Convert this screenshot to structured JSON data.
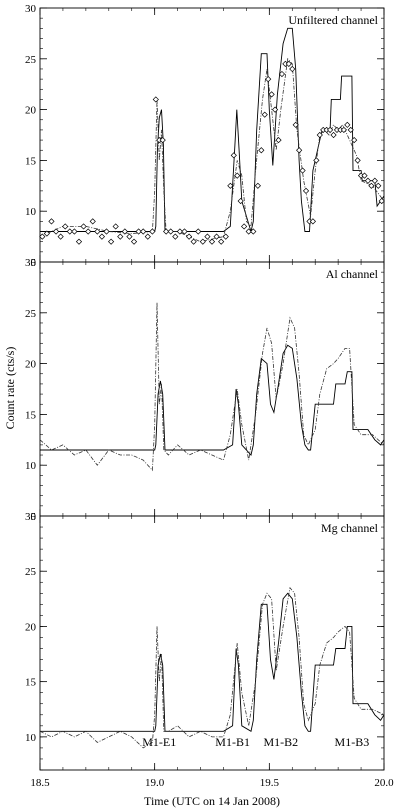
{
  "chart_data": {
    "type": "line",
    "xlabel": "Time (UTC on 14 Jan 2008)",
    "ylabel": "Count rate (cts/s)",
    "xlim": [
      18.5,
      20.0
    ],
    "x_ticks": [
      "18.5",
      "19.0",
      "19.5",
      "20.0"
    ],
    "panels": [
      {
        "title": "Unfiltered channel",
        "ylim": [
          5,
          30
        ],
        "y_ticks": [
          "5",
          "10",
          "15",
          "20",
          "25",
          "30"
        ],
        "series": [
          {
            "style": "solid",
            "x": [
              18.5,
              19.0,
              19.005,
              19.012,
              19.02,
              19.03,
              19.038,
              19.045,
              19.3,
              19.33,
              19.35,
              19.358,
              19.368,
              19.38,
              19.42,
              19.43,
              19.445,
              19.465,
              19.49,
              19.5,
              19.515,
              19.535,
              19.56,
              19.58,
              19.6,
              19.615,
              19.63,
              19.64,
              19.655,
              19.675,
              19.69,
              19.73,
              19.735,
              19.765,
              19.77,
              19.81,
              19.815,
              19.86,
              19.865,
              19.9,
              19.905,
              19.96,
              19.97,
              20.0
            ],
            "y": [
              8.0,
              8.0,
              8.5,
              16.0,
              19.2,
              20.0,
              16.5,
              8.0,
              8.0,
              8.5,
              16.5,
              20.0,
              16.0,
              11.0,
              8.0,
              9.0,
              18.0,
              25.5,
              25.5,
              20.0,
              14.5,
              21.5,
              26.5,
              28.0,
              28.0,
              24.0,
              15.0,
              11.0,
              8.0,
              8.0,
              14.0,
              18.0,
              18.0,
              18.0,
              21.0,
              21.0,
              23.3,
              23.3,
              14.0,
              14.0,
              13.0,
              13.0,
              10.5,
              11.5
            ]
          },
          {
            "style": "dash-dot",
            "x": [
              18.5,
              18.6,
              18.7,
              18.8,
              18.9,
              18.99,
              19.0,
              19.01,
              19.02,
              19.03,
              19.04,
              19.05,
              19.1,
              19.2,
              19.3,
              19.33,
              19.36,
              19.38,
              19.4,
              19.42,
              19.44,
              19.47,
              19.49,
              19.51,
              19.53,
              19.55,
              19.58,
              19.6,
              19.62,
              19.65,
              19.68,
              19.7,
              19.72,
              19.74,
              19.76,
              19.78,
              19.8,
              19.82,
              19.85,
              19.88,
              19.9,
              19.95,
              20.0
            ],
            "y": [
              7.5,
              8.5,
              8.5,
              8.0,
              7.8,
              8.0,
              12.0,
              21.0,
              15.0,
              18.0,
              12.0,
              8.0,
              8.0,
              7.0,
              7.5,
              10.0,
              15.0,
              13.5,
              9.0,
              8.5,
              14.0,
              21.0,
              24.0,
              20.0,
              16.0,
              20.0,
              25.0,
              24.5,
              18.0,
              13.0,
              9.5,
              14.0,
              17.5,
              18.0,
              17.5,
              18.5,
              18.0,
              18.5,
              17.0,
              15.5,
              13.0,
              12.5,
              11.0
            ]
          },
          {
            "style": "diamond-markers",
            "x": [
              18.51,
              18.53,
              18.55,
              18.57,
              18.59,
              18.61,
              18.63,
              18.65,
              18.67,
              18.69,
              18.71,
              18.73,
              18.75,
              18.77,
              18.79,
              18.81,
              18.83,
              18.85,
              18.87,
              18.89,
              18.91,
              18.93,
              18.95,
              18.97,
              18.99,
              19.005,
              19.02,
              19.035,
              19.05,
              19.07,
              19.09,
              19.11,
              19.13,
              19.15,
              19.17,
              19.19,
              19.21,
              19.23,
              19.25,
              19.27,
              19.29,
              19.31,
              19.33,
              19.345,
              19.36,
              19.375,
              19.39,
              19.41,
              19.43,
              19.45,
              19.465,
              19.48,
              19.495,
              19.51,
              19.525,
              19.54,
              19.555,
              19.57,
              19.585,
              19.6,
              19.615,
              19.63,
              19.645,
              19.66,
              19.675,
              19.69,
              19.705,
              19.72,
              19.735,
              19.75,
              19.765,
              19.78,
              19.795,
              19.81,
              19.825,
              19.84,
              19.855,
              19.87,
              19.885,
              19.9,
              19.915,
              19.93,
              19.945,
              19.96,
              19.975,
              19.99
            ],
            "y": [
              7.5,
              7.8,
              9.0,
              8.0,
              7.5,
              8.5,
              8.0,
              8.0,
              7.0,
              8.5,
              8.0,
              9.0,
              8.0,
              7.5,
              8.0,
              7.0,
              8.5,
              7.5,
              8.0,
              7.5,
              7.0,
              8.0,
              8.0,
              7.5,
              8.0,
              21.0,
              17.0,
              17.0,
              8.0,
              8.0,
              7.5,
              8.0,
              8.0,
              7.5,
              7.0,
              8.0,
              7.0,
              7.5,
              7.0,
              7.5,
              7.0,
              7.5,
              12.5,
              15.5,
              13.5,
              11.0,
              8.5,
              8.0,
              8.0,
              12.5,
              16.0,
              19.5,
              23.0,
              21.5,
              20.0,
              17.0,
              23.5,
              24.5,
              24.5,
              24.0,
              18.5,
              16.0,
              14.0,
              12.0,
              9.0,
              9.0,
              15.0,
              17.5,
              18.0,
              18.0,
              18.0,
              17.5,
              18.0,
              18.0,
              18.0,
              18.5,
              18.0,
              17.0,
              15.0,
              13.5,
              13.5,
              13.0,
              12.5,
              13.0,
              12.5,
              11.0
            ]
          }
        ]
      },
      {
        "title": "Al channel",
        "ylim": [
          5,
          30
        ],
        "y_ticks": [
          "5",
          "10",
          "15",
          "20",
          "25",
          "30"
        ],
        "series": [
          {
            "style": "solid",
            "x": [
              18.5,
              19.0,
              19.005,
              19.015,
              19.025,
              19.035,
              19.045,
              19.3,
              19.34,
              19.355,
              19.365,
              19.38,
              19.42,
              19.43,
              19.445,
              19.465,
              19.49,
              19.505,
              19.52,
              19.54,
              19.56,
              19.58,
              19.6,
              19.62,
              19.64,
              19.655,
              19.67,
              19.68,
              19.7,
              19.73,
              19.78,
              19.79,
              19.83,
              19.84,
              19.86,
              19.865,
              19.9,
              19.93,
              19.96,
              19.985,
              20.0
            ],
            "y": [
              11.5,
              11.5,
              12.0,
              17.0,
              18.3,
              17.0,
              11.5,
              11.5,
              12.0,
              17.5,
              16.0,
              12.0,
              11.0,
              12.0,
              17.0,
              20.5,
              20.0,
              16.0,
              15.2,
              18.0,
              21.0,
              21.8,
              21.5,
              18.5,
              14.0,
              12.0,
              11.5,
              11.5,
              16.0,
              16.0,
              16.0,
              18.0,
              18.0,
              19.2,
              19.2,
              13.5,
              13.5,
              13.5,
              12.5,
              12.0,
              12.5
            ]
          },
          {
            "style": "dash-dot",
            "x": [
              18.5,
              18.55,
              18.6,
              18.65,
              18.7,
              18.75,
              18.8,
              18.85,
              18.9,
              18.95,
              18.99,
              19.0,
              19.01,
              19.02,
              19.03,
              19.04,
              19.06,
              19.1,
              19.15,
              19.2,
              19.25,
              19.3,
              19.33,
              19.36,
              19.38,
              19.41,
              19.44,
              19.47,
              19.49,
              19.51,
              19.53,
              19.56,
              19.59,
              19.61,
              19.63,
              19.65,
              19.67,
              19.7,
              19.72,
              19.75,
              19.78,
              19.8,
              19.83,
              19.85,
              19.87,
              19.9,
              19.95,
              20.0
            ],
            "y": [
              12.5,
              11.5,
              12.0,
              11.0,
              11.5,
              10.0,
              11.5,
              11.0,
              11.0,
              10.5,
              9.5,
              14.0,
              26.0,
              16.0,
              18.0,
              11.5,
              11.0,
              12.0,
              11.0,
              11.5,
              11.0,
              10.5,
              13.0,
              17.5,
              14.0,
              10.5,
              15.0,
              21.0,
              23.5,
              22.0,
              16.5,
              20.0,
              24.5,
              23.5,
              19.0,
              13.0,
              12.0,
              13.5,
              17.0,
              19.5,
              20.0,
              20.5,
              21.5,
              21.5,
              14.0,
              13.0,
              13.0,
              12.0
            ]
          }
        ]
      },
      {
        "title": "Mg channel",
        "ylim": [
          7,
          30
        ],
        "y_ticks": [
          "10",
          "15",
          "20",
          "25",
          "30"
        ],
        "series": [
          {
            "style": "solid",
            "x": [
              18.5,
              19.0,
              19.005,
              19.015,
              19.025,
              19.035,
              19.045,
              19.3,
              19.34,
              19.355,
              19.365,
              19.38,
              19.42,
              19.43,
              19.445,
              19.465,
              19.49,
              19.505,
              19.52,
              19.54,
              19.56,
              19.58,
              19.6,
              19.62,
              19.64,
              19.655,
              19.67,
              19.68,
              19.7,
              19.73,
              19.78,
              19.79,
              19.83,
              19.84,
              19.86,
              19.865,
              19.9,
              19.93,
              19.96,
              19.985,
              20.0
            ],
            "y": [
              10.5,
              10.5,
              11.0,
              16.5,
              17.5,
              16.5,
              10.5,
              10.5,
              11.0,
              18.0,
              16.5,
              11.0,
              10.5,
              11.5,
              17.0,
              22.0,
              22.0,
              17.0,
              15.2,
              18.5,
              22.5,
              23.0,
              22.5,
              19.0,
              14.0,
              11.0,
              10.5,
              10.5,
              16.5,
              16.5,
              16.5,
              18.0,
              18.0,
              20.0,
              20.0,
              13.0,
              13.0,
              13.0,
              12.0,
              11.5,
              12.0
            ]
          },
          {
            "style": "dash-dot",
            "x": [
              18.5,
              18.55,
              18.6,
              18.65,
              18.7,
              18.75,
              18.8,
              18.85,
              18.9,
              18.95,
              18.99,
              19.0,
              19.01,
              19.02,
              19.03,
              19.04,
              19.06,
              19.1,
              19.15,
              19.2,
              19.25,
              19.3,
              19.33,
              19.36,
              19.38,
              19.41,
              19.44,
              19.47,
              19.49,
              19.51,
              19.53,
              19.56,
              19.59,
              19.61,
              19.63,
              19.65,
              19.67,
              19.7,
              19.72,
              19.75,
              19.78,
              19.8,
              19.83,
              19.85,
              19.87,
              19.9,
              19.95,
              20.0
            ],
            "y": [
              10.5,
              10.0,
              10.5,
              10.0,
              10.5,
              9.5,
              10.0,
              10.5,
              10.0,
              9.0,
              9.5,
              12.0,
              20.0,
              15.0,
              17.5,
              10.5,
              10.5,
              11.0,
              10.0,
              10.5,
              10.0,
              10.0,
              12.0,
              18.5,
              14.0,
              11.0,
              15.0,
              22.0,
              23.0,
              22.5,
              16.0,
              20.0,
              23.5,
              23.0,
              19.0,
              13.0,
              11.5,
              13.0,
              16.5,
              18.5,
              19.0,
              19.5,
              20.0,
              19.5,
              13.5,
              12.5,
              12.5,
              12.0
            ]
          }
        ],
        "annotations": [
          {
            "text": "M1-E1",
            "x": 19.02
          },
          {
            "text": "M1-B1",
            "x": 19.34
          },
          {
            "text": "M1-B2",
            "x": 19.55
          },
          {
            "text": "M1-B3",
            "x": 19.86
          }
        ]
      }
    ]
  }
}
